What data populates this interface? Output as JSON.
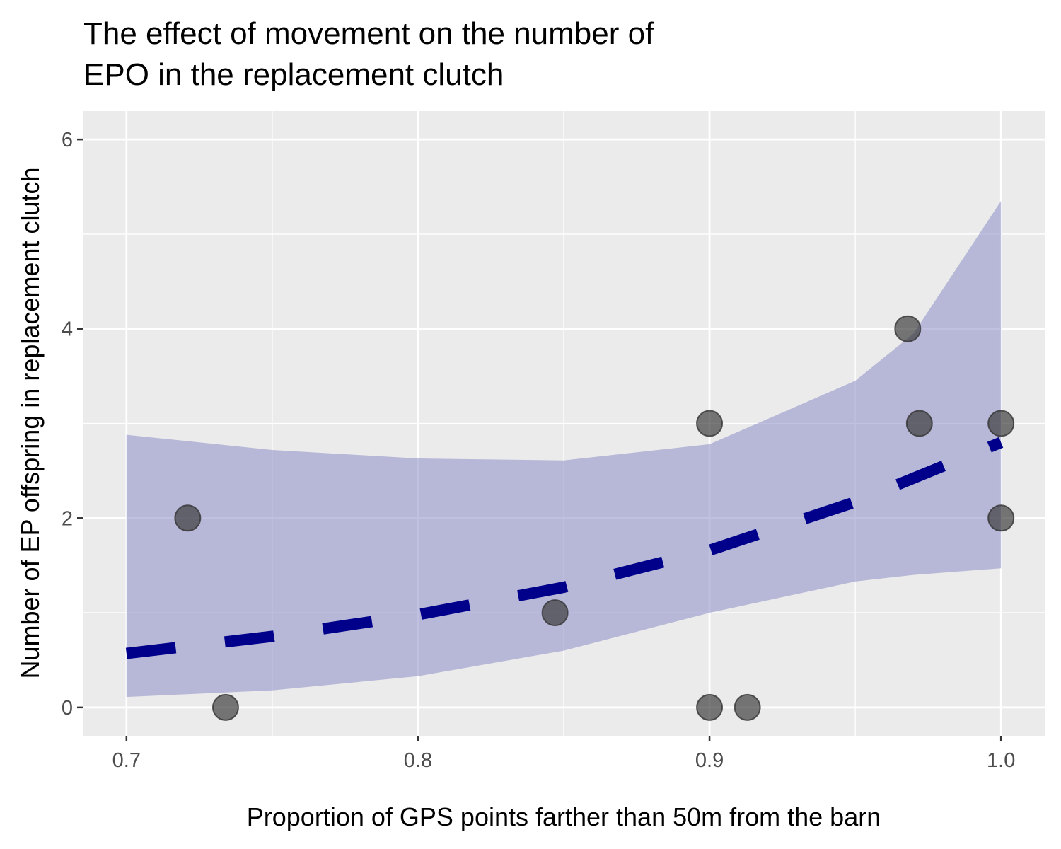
{
  "chart_data": {
    "type": "scatter",
    "title": [
      "The effect of movement on the number of",
      "EPO in the replacement clutch"
    ],
    "xlabel": "Proportion of GPS points farther than 50m from the barn",
    "ylabel": "Number of EP offspring in replacement clutch",
    "xlim": [
      0.685,
      1.015
    ],
    "ylim": [
      -0.3,
      6.3
    ],
    "x_ticks": [
      0.7,
      0.8,
      0.9,
      1.0
    ],
    "x_tick_labels": [
      "0.7",
      "0.8",
      "0.9",
      "1.0"
    ],
    "y_ticks": [
      0,
      2,
      4,
      6
    ],
    "y_tick_labels": [
      "0",
      "2",
      "4",
      "6"
    ],
    "grid": true,
    "background": "#ebebeb",
    "points": {
      "color": "#333333",
      "x": [
        0.721,
        0.734,
        0.847,
        0.9,
        0.9,
        0.913,
        0.968,
        0.972,
        1.0,
        1.0
      ],
      "y": [
        2,
        0,
        1,
        3,
        0,
        0,
        4,
        3,
        3,
        2
      ]
    },
    "fit": {
      "color": "#00008b",
      "style": "dashed",
      "x": [
        0.7,
        0.75,
        0.8,
        0.85,
        0.9,
        0.95,
        1.0
      ],
      "y": [
        0.57,
        0.75,
        0.98,
        1.27,
        1.66,
        2.17,
        2.8
      ]
    },
    "ribbon": {
      "color": "#8c8cc8",
      "x": [
        0.7,
        0.75,
        0.8,
        0.85,
        0.9,
        0.95,
        0.97,
        1.0
      ],
      "lower": [
        0.11,
        0.18,
        0.33,
        0.6,
        1.0,
        1.33,
        1.4,
        1.47
      ],
      "upper": [
        2.88,
        2.72,
        2.63,
        2.61,
        2.78,
        3.45,
        3.95,
        5.35
      ]
    }
  }
}
